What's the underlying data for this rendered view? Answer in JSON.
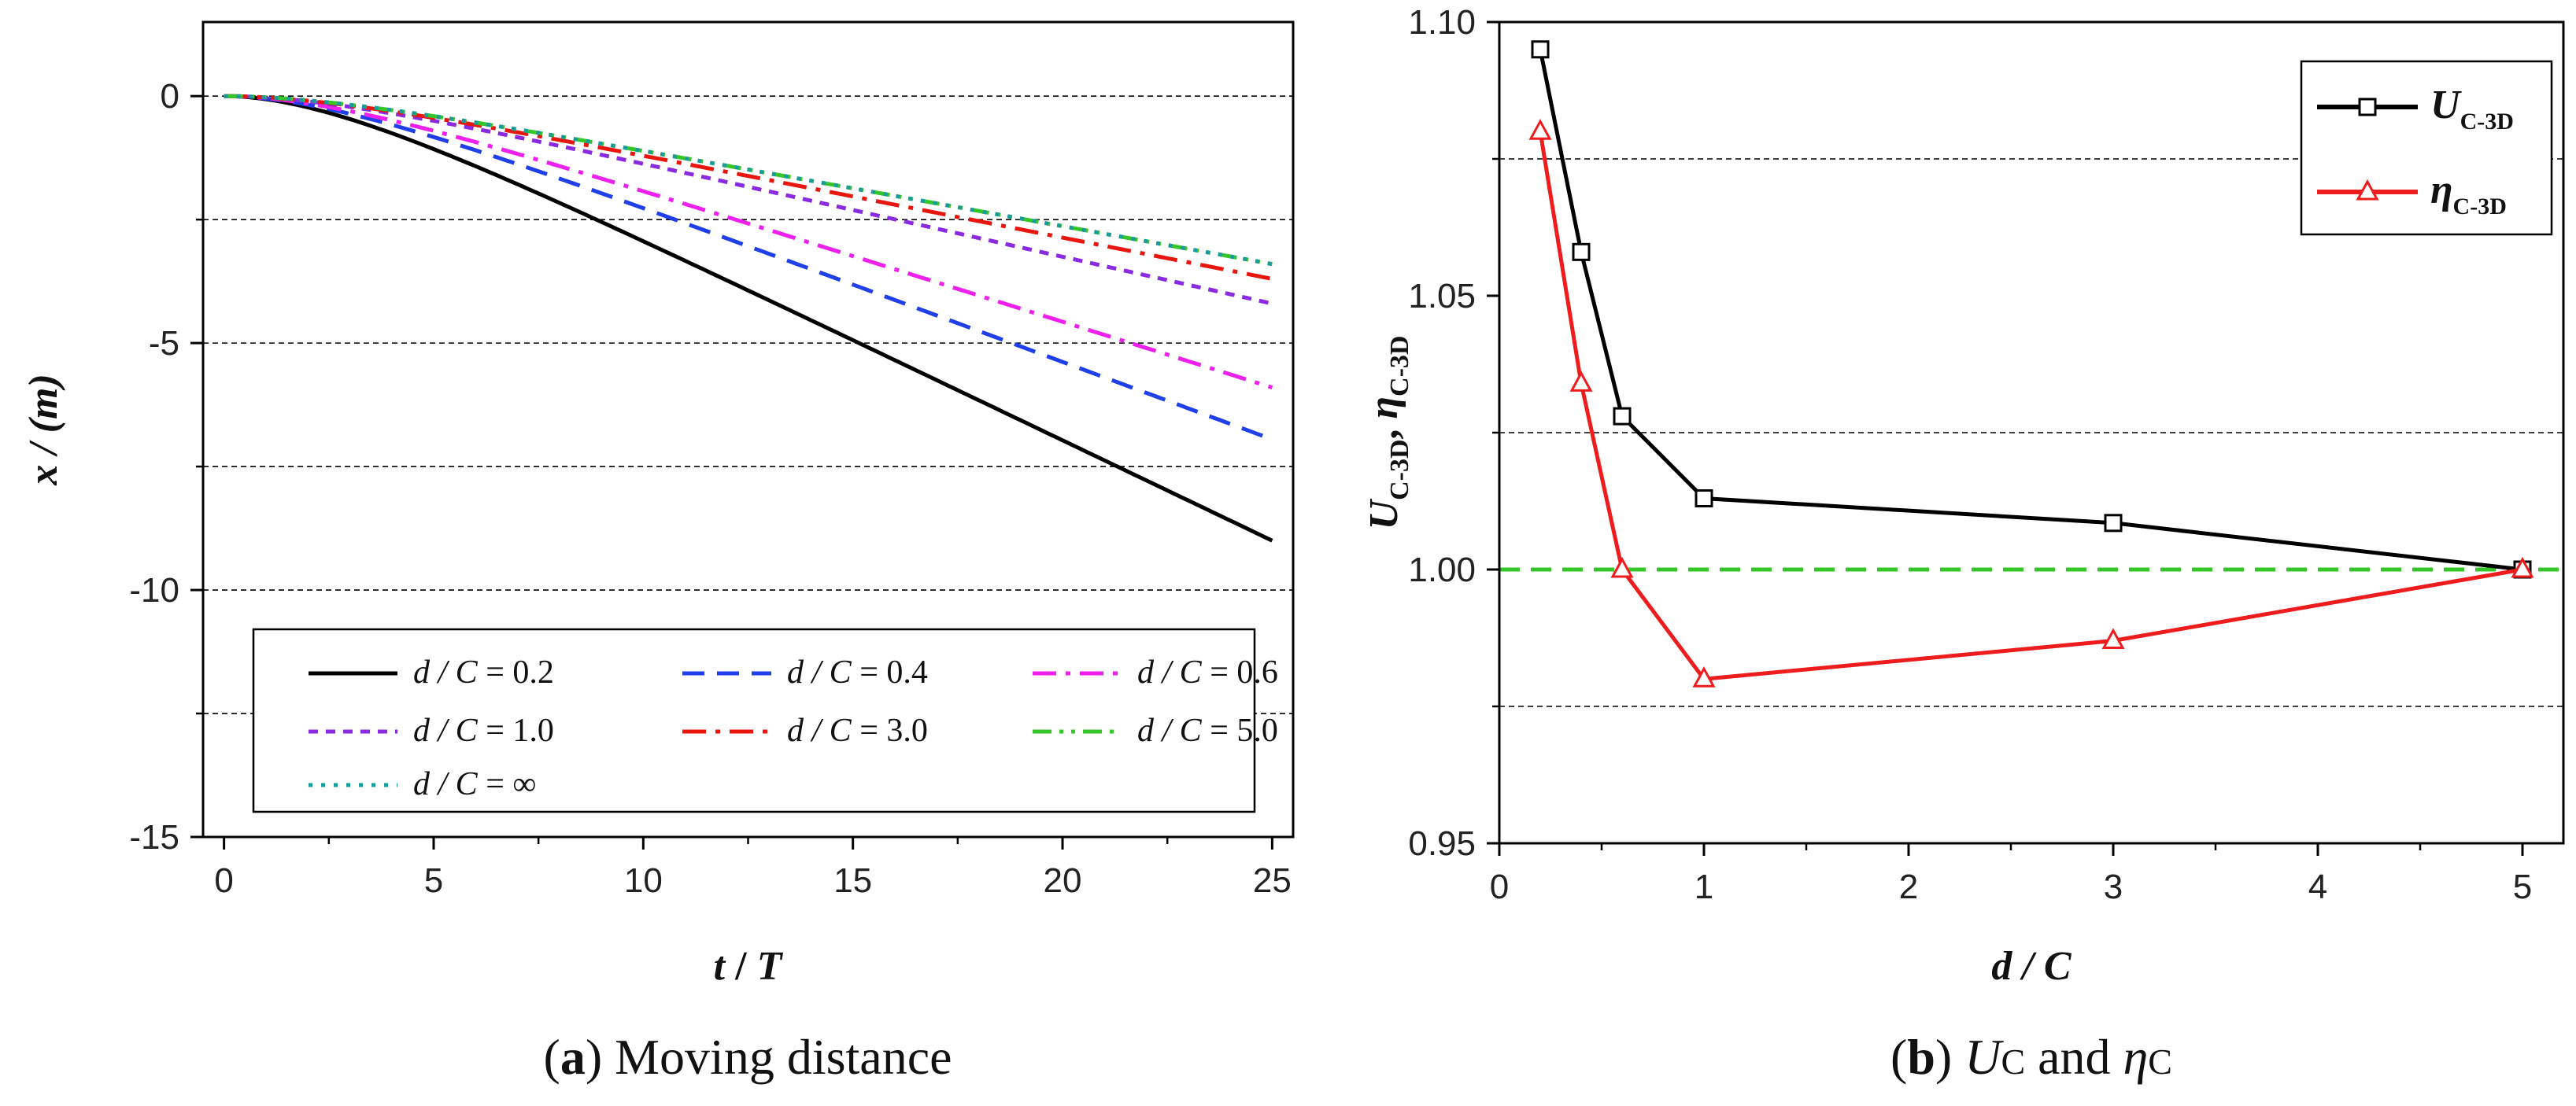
{
  "chart_data": [
    {
      "type": "line",
      "panel": "a",
      "caption_letter": "a",
      "caption_text": "Moving distance",
      "xlabel_var": "t",
      "xlabel_sep": " / ",
      "xlabel_unit": "T",
      "ylabel": "x / (m)",
      "xlim": [
        -0.5,
        25.5
      ],
      "ylim": [
        -15,
        1.5
      ],
      "xticks": [
        "0",
        "5",
        "10",
        "15",
        "20",
        "25"
      ],
      "yticks": [
        "0",
        "-5",
        "-10",
        "-15"
      ],
      "hgrid": [
        0,
        -2.5,
        -5,
        -7.5,
        -10,
        -12.5
      ],
      "legend_position": "lower-left",
      "series": [
        {
          "name": "d / C = 0.2",
          "label_var": "d / C",
          "label_val": "= 0.2",
          "color": "#000000",
          "dash": "solid",
          "final": -9.0
        },
        {
          "name": "d / C = 0.4",
          "label_var": "d / C",
          "label_val": "= 0.4",
          "color": "#1f3fe8",
          "dash": "dash",
          "final": -6.95
        },
        {
          "name": "d / C = 0.6",
          "label_var": "d / C",
          "label_val": "= 0.6",
          "color": "#ee20ee",
          "dash": "dashdot",
          "final": -5.9
        },
        {
          "name": "d / C = 1.0",
          "label_var": "d / C",
          "label_val": "= 1.0",
          "color": "#8a2be2",
          "dash": "shortdash",
          "final": -4.2
        },
        {
          "name": "d / C = 3.0",
          "label_var": "d / C",
          "label_val": "= 3.0",
          "color": "#e8160c",
          "dash": "dashdot",
          "final": -3.7
        },
        {
          "name": "d / C = 5.0",
          "label_var": "d / C",
          "label_val": "= 5.0",
          "color": "#35c72a",
          "dash": "dashdotdot",
          "final": -3.4
        },
        {
          "name": "d / C = ∞",
          "label_var": "d / C",
          "label_val": "= ∞",
          "color": "#1a9a9a",
          "dash": "dot",
          "final": -3.4
        }
      ]
    },
    {
      "type": "line",
      "panel": "b",
      "caption_letter": "b",
      "caption_u": "U",
      "caption_sub": "C",
      "caption_and": "and",
      "caption_eta": "η",
      "caption_sub2": "C",
      "xlabel": "d / C",
      "ylabel_u": "U",
      "ylabel_sub": "C-3D",
      "ylabel_comma": ", ",
      "ylabel_eta": "η",
      "ylabel_sub2": "C-3D",
      "xlim": [
        0,
        5.2
      ],
      "ylim": [
        0.95,
        1.1
      ],
      "xticks": [
        "0",
        "1",
        "2",
        "3",
        "4",
        "5"
      ],
      "yticks": [
        "0.95",
        "1.00",
        "1.05",
        "1.10"
      ],
      "hgrid": [
        0.975,
        1.025,
        1.075
      ],
      "ref_line": 1.0,
      "ref_color": "#35c72a",
      "legend_position": "top-right",
      "x": [
        0.2,
        0.4,
        0.6,
        1.0,
        3.0,
        5.0
      ],
      "series": [
        {
          "name": "U C-3D",
          "label_main": "U",
          "label_sub": "C-3D",
          "color": "#000000",
          "marker": "square",
          "values": [
            1.095,
            1.058,
            1.028,
            1.013,
            1.0085,
            1.0
          ]
        },
        {
          "name": "η C-3D",
          "label_main": "η",
          "label_sub": "C-3D",
          "color": "#ee1c1c",
          "marker": "triangle",
          "values": [
            1.08,
            1.034,
            1.0,
            0.98,
            0.987,
            1.0
          ]
        }
      ]
    }
  ]
}
